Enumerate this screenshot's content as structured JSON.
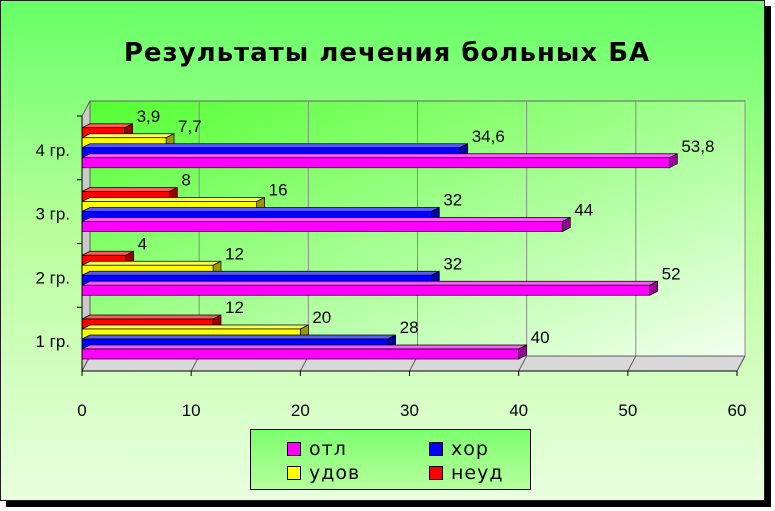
{
  "chart_data": {
    "type": "bar",
    "orientation": "horizontal",
    "title": "Результаты лечения больных БА",
    "categories": [
      "1 гр.",
      "2 гр.",
      "3 гр.",
      "4 гр."
    ],
    "series": [
      {
        "name": "отл",
        "color": "#ff00ff",
        "values": [
          40,
          52,
          44,
          53.8
        ],
        "labels": [
          "40",
          "52",
          "44",
          "53,8"
        ]
      },
      {
        "name": "хор",
        "color": "#0000ff",
        "values": [
          28,
          32,
          32,
          34.6
        ],
        "labels": [
          "28",
          "32",
          "32",
          "34,6"
        ]
      },
      {
        "name": "удов",
        "color": "#ffff00",
        "values": [
          20,
          12,
          16,
          7.7
        ],
        "labels": [
          "20",
          "12",
          "16",
          "7,7"
        ]
      },
      {
        "name": "неуд",
        "color": "#ff0000",
        "values": [
          12,
          4,
          8,
          3.9
        ],
        "labels": [
          "12",
          "4",
          "8",
          "3,9"
        ]
      }
    ],
    "xlim": [
      0,
      60
    ],
    "xticks": [
      "0",
      "10",
      "20",
      "30",
      "40",
      "50",
      "60"
    ],
    "grid": "vertical",
    "legend_position": "bottom"
  },
  "legend": {
    "items": [
      {
        "label": "отл",
        "color": "#ff00ff"
      },
      {
        "label": "хор",
        "color": "#0000ff"
      },
      {
        "label": "удов",
        "color": "#ffff00"
      },
      {
        "label": "неуд",
        "color": "#ff0000"
      }
    ]
  }
}
